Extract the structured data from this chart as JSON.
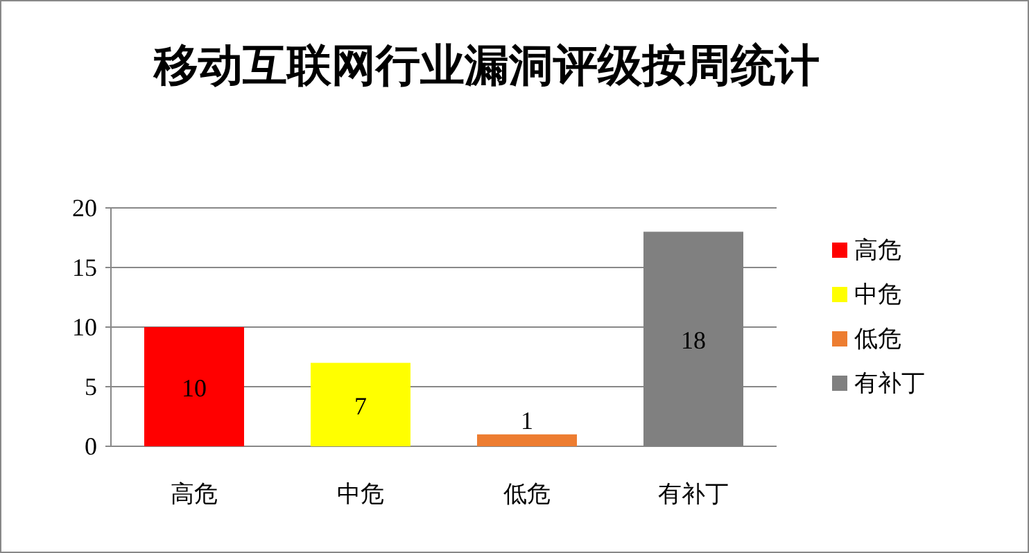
{
  "chart_data": {
    "type": "bar",
    "title": "移动互联网行业漏洞评级按周统计",
    "categories": [
      null,
      null,
      null,
      null
    ],
    "series": [
      {
        "name": "高危",
        "color": "#ff0000",
        "values": [
          10,
          null,
          null,
          null
        ]
      },
      {
        "name": "中危",
        "color": "#ffff00",
        "values": [
          null,
          7,
          null,
          null
        ]
      },
      {
        "name": "低危",
        "color": "#ed7d31",
        "values": [
          null,
          null,
          1,
          null
        ]
      },
      {
        "name": "有补丁",
        "color": "#808080",
        "values": [
          null,
          null,
          null,
          18
        ]
      }
    ],
    "ylim": [
      0,
      20
    ],
    "yticks": [
      0,
      5,
      10,
      15,
      20
    ],
    "grid": "y",
    "data_labels": true,
    "legend": "right"
  }
}
